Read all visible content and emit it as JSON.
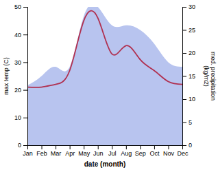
{
  "chart_data": {
    "type": "line",
    "categories": [
      "Jan",
      "Feb",
      "Mar",
      "Apr",
      "May",
      "Jun",
      "Jul",
      "Aug",
      "Sep",
      "Oct",
      "Nov",
      "Dec"
    ],
    "x_label": "date (month)",
    "y_label": "max temp (C)",
    "y2_label": "med. precipitation\n(kg/m2)",
    "ylim": [
      0,
      50
    ],
    "yticks": [
      0,
      10,
      20,
      30,
      40,
      50
    ],
    "y2lim": [
      0,
      30
    ],
    "y2ticks": [
      0,
      5,
      10,
      15,
      20,
      25,
      30
    ],
    "grid": false,
    "series": [
      {
        "type": "area",
        "axis": "y2",
        "color": "#b8c4ef",
        "values": [
          13.0,
          15.0,
          17.0,
          17.0,
          28.0,
          30.0,
          26.0,
          26.0,
          25.0,
          22.0,
          18.0,
          17.0
        ]
      },
      {
        "type": "line",
        "color": "#b03050",
        "values": [
          21.0,
          21.0,
          22.0,
          27.0,
          45.0,
          46.0,
          33.0,
          36.0,
          31.0,
          27.0,
          23.0,
          22.0
        ]
      }
    ]
  }
}
